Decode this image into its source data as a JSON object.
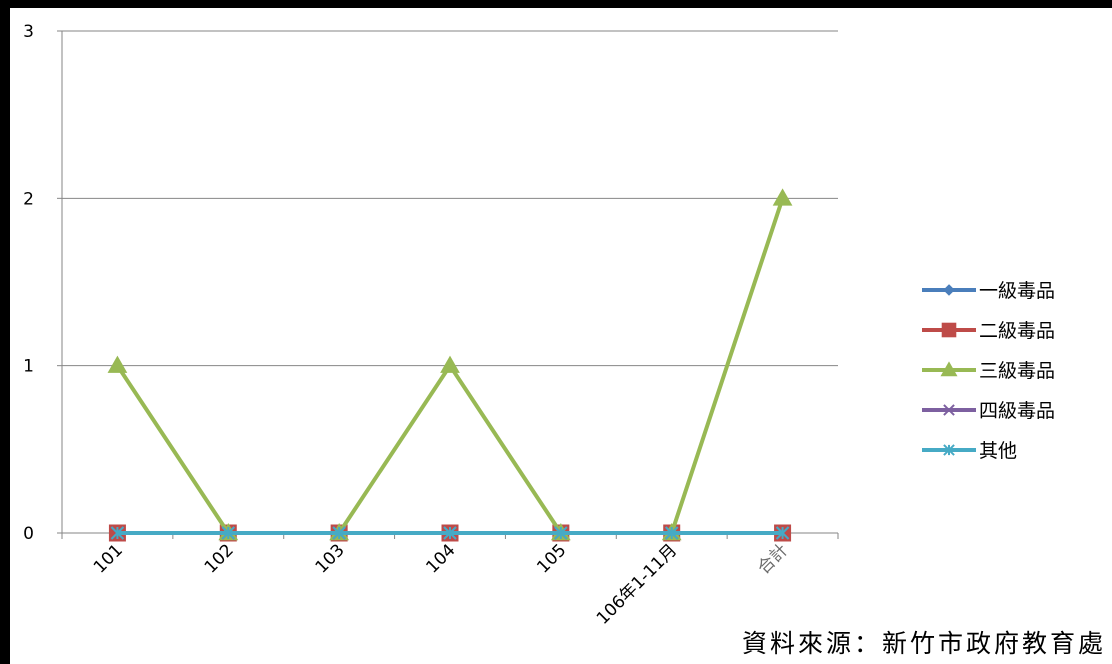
{
  "chart_data": {
    "type": "line",
    "title": "",
    "xlabel": "",
    "ylabel": "",
    "categories": [
      "101",
      "102",
      "103",
      "104",
      "105",
      "106年1-11月",
      "合計"
    ],
    "ylim": [
      0,
      3
    ],
    "yticks": [
      "0",
      "1",
      "2",
      "3"
    ],
    "grid": true,
    "legend_position": "right",
    "series": [
      {
        "name": "一級毒品",
        "values": [
          0,
          0,
          0,
          0,
          0,
          0,
          0
        ],
        "color": "#4A7EBB",
        "marker": "diamond"
      },
      {
        "name": "二級毒品",
        "values": [
          0,
          0,
          0,
          0,
          0,
          0,
          0
        ],
        "color": "#BE4B48",
        "marker": "square"
      },
      {
        "name": "三級毒品",
        "values": [
          1,
          0,
          0,
          1,
          0,
          0,
          2
        ],
        "color": "#98B954",
        "marker": "triangle"
      },
      {
        "name": "四級毒品",
        "values": [
          0,
          0,
          0,
          0,
          0,
          0,
          0
        ],
        "color": "#7D60A0",
        "marker": "x"
      },
      {
        "name": "其他",
        "values": [
          0,
          0,
          0,
          0,
          0,
          0,
          0
        ],
        "color": "#46AAC5",
        "marker": "star"
      }
    ]
  },
  "source_note": "資料來源：新竹市政府教育處"
}
